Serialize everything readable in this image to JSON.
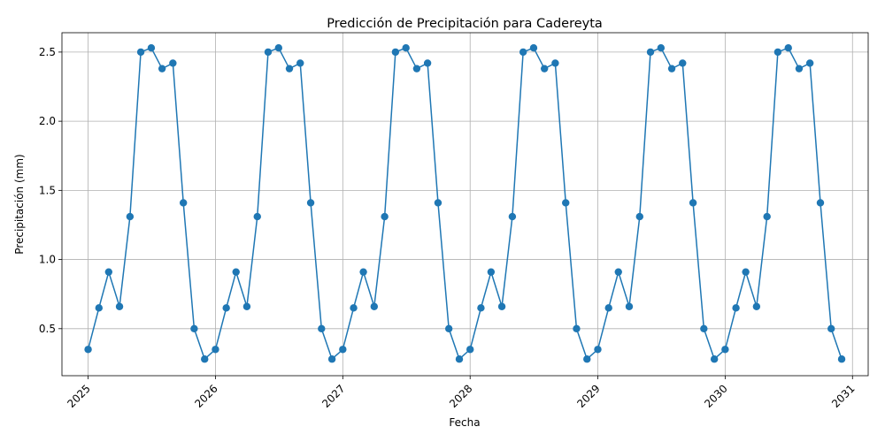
{
  "chart_data": {
    "type": "line",
    "title": "Predicción de Precipitación para Cadereyta",
    "xlabel": "Fecha",
    "ylabel": "Precipitación (mm)",
    "x_ticks": [
      "2025",
      "2026",
      "2027",
      "2028",
      "2029",
      "2030",
      "2031"
    ],
    "y_ticks": [
      "0.5",
      "1.0",
      "1.5",
      "2.0",
      "2.5"
    ],
    "xlim": [
      "2024-10-18",
      "2031-02-15"
    ],
    "ylim": [
      0.16,
      2.64
    ],
    "grid": true,
    "marker": "circle",
    "colors": {
      "series": "#1f77b4"
    },
    "series": [
      {
        "x": [
          "2025-01-01",
          "2025-02-01",
          "2025-03-01",
          "2025-04-01",
          "2025-05-01",
          "2025-06-01",
          "2025-07-01",
          "2025-08-01",
          "2025-09-01",
          "2025-10-01",
          "2025-11-01",
          "2025-12-01",
          "2026-01-01",
          "2026-02-01",
          "2026-03-01",
          "2026-04-01",
          "2026-05-01",
          "2026-06-01",
          "2026-07-01",
          "2026-08-01",
          "2026-09-01",
          "2026-10-01",
          "2026-11-01",
          "2026-12-01",
          "2027-01-01",
          "2027-02-01",
          "2027-03-01",
          "2027-04-01",
          "2027-05-01",
          "2027-06-01",
          "2027-07-01",
          "2027-08-01",
          "2027-09-01",
          "2027-10-01",
          "2027-11-01",
          "2027-12-01",
          "2028-01-01",
          "2028-02-01",
          "2028-03-01",
          "2028-04-01",
          "2028-05-01",
          "2028-06-01",
          "2028-07-01",
          "2028-08-01",
          "2028-09-01",
          "2028-10-01",
          "2028-11-01",
          "2028-12-01",
          "2029-01-01",
          "2029-02-01",
          "2029-03-01",
          "2029-04-01",
          "2029-05-01",
          "2029-06-01",
          "2029-07-01",
          "2029-08-01",
          "2029-09-01",
          "2029-10-01",
          "2029-11-01",
          "2029-12-01",
          "2030-01-01",
          "2030-02-01",
          "2030-03-01",
          "2030-04-01",
          "2030-05-01",
          "2030-06-01",
          "2030-07-01",
          "2030-08-01",
          "2030-09-01",
          "2030-10-01",
          "2030-11-01",
          "2030-12-01"
        ],
        "values": [
          0.35,
          0.65,
          0.91,
          0.66,
          1.31,
          2.5,
          2.53,
          2.38,
          2.42,
          1.41,
          0.5,
          0.28,
          0.35,
          0.65,
          0.91,
          0.66,
          1.31,
          2.5,
          2.53,
          2.38,
          2.42,
          1.41,
          0.5,
          0.28,
          0.35,
          0.65,
          0.91,
          0.66,
          1.31,
          2.5,
          2.53,
          2.38,
          2.42,
          1.41,
          0.5,
          0.28,
          0.35,
          0.65,
          0.91,
          0.66,
          1.31,
          2.5,
          2.53,
          2.38,
          2.42,
          1.41,
          0.5,
          0.28,
          0.35,
          0.65,
          0.91,
          0.66,
          1.31,
          2.5,
          2.53,
          2.38,
          2.42,
          1.41,
          0.5,
          0.28,
          0.35,
          0.65,
          0.91,
          0.66,
          1.31,
          2.5,
          2.53,
          2.38,
          2.42,
          1.41,
          0.5,
          0.28
        ]
      }
    ]
  }
}
